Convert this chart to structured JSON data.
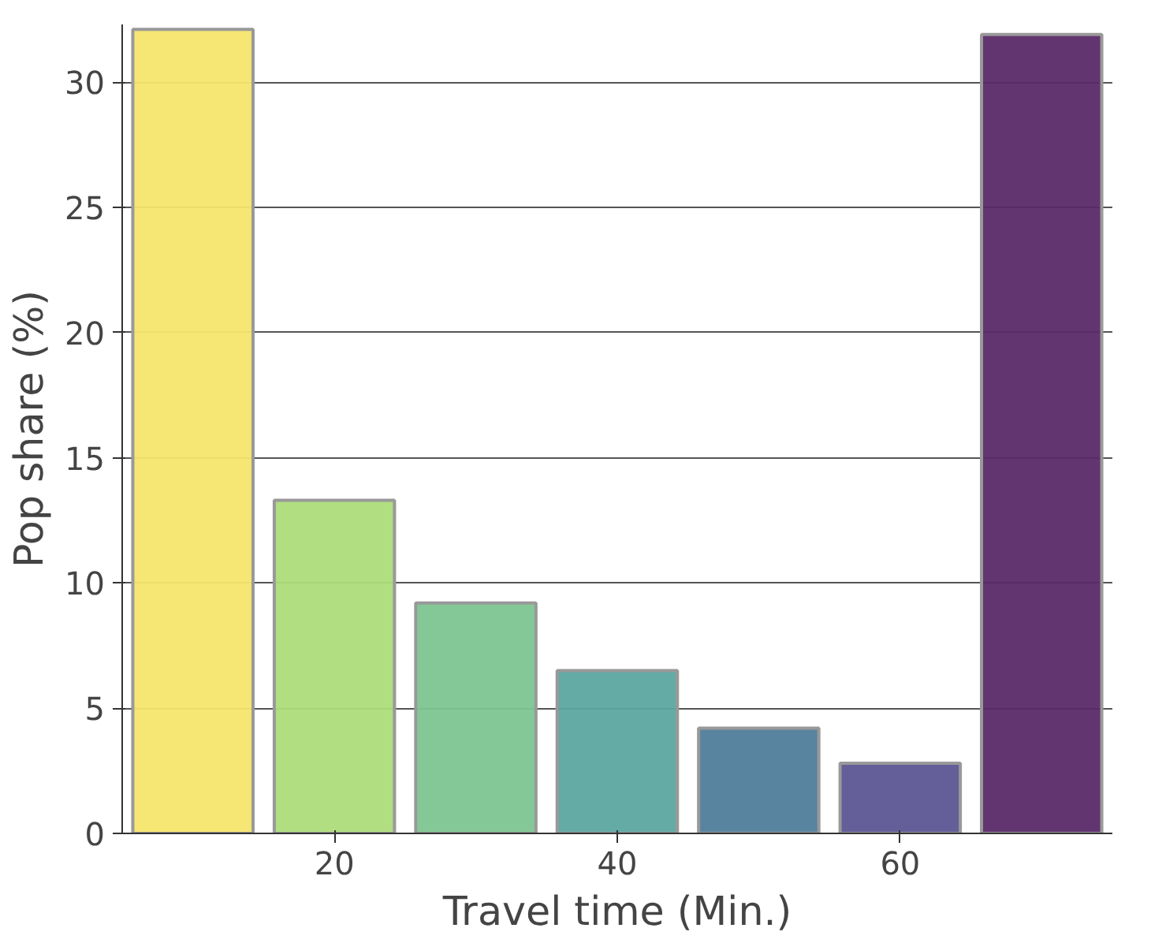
{
  "chart_data": {
    "type": "bar",
    "xlabel": "Travel time (Min.)",
    "ylabel": "Pop share (%)",
    "x": [
      10,
      20,
      30,
      40,
      50,
      60,
      70
    ],
    "values": [
      32.1,
      13.3,
      9.2,
      6.5,
      4.2,
      2.8,
      31.9
    ],
    "colors": [
      "#f5e56b",
      "#addc7a",
      "#7cc590",
      "#5ca6a0",
      "#507d9a",
      "#5c5594",
      "#5a2a68"
    ],
    "xlim": [
      5,
      75
    ],
    "xticks": [
      20,
      40,
      60
    ],
    "ylim": [
      0,
      32.3
    ],
    "yticks": [
      0,
      5,
      10,
      15,
      20,
      25,
      30
    ],
    "grid": "y"
  }
}
